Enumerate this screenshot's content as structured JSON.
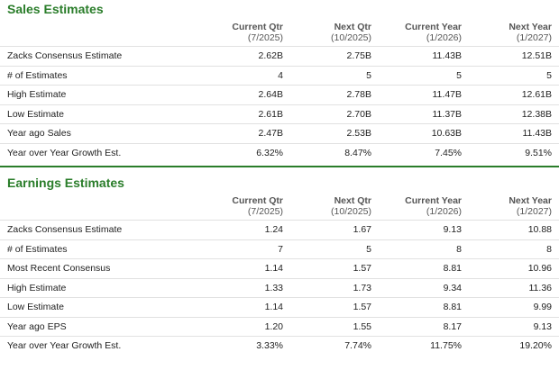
{
  "sales": {
    "title": "Sales Estimates",
    "columns": [
      {
        "period": "Current Qtr",
        "date": "(7/2025)"
      },
      {
        "period": "Next Qtr",
        "date": "(10/2025)"
      },
      {
        "period": "Current Year",
        "date": "(1/2026)"
      },
      {
        "period": "Next Year",
        "date": "(1/2027)"
      }
    ],
    "rows": [
      {
        "label": "Zacks Consensus Estimate",
        "values": [
          "2.62B",
          "2.75B",
          "11.43B",
          "12.51B"
        ]
      },
      {
        "label": "# of Estimates",
        "values": [
          "4",
          "5",
          "5",
          "5"
        ]
      },
      {
        "label": "High Estimate",
        "values": [
          "2.64B",
          "2.78B",
          "11.47B",
          "12.61B"
        ]
      },
      {
        "label": "Low Estimate",
        "values": [
          "2.61B",
          "2.70B",
          "11.37B",
          "12.38B"
        ]
      },
      {
        "label": "Year ago Sales",
        "values": [
          "2.47B",
          "2.53B",
          "10.63B",
          "11.43B"
        ]
      },
      {
        "label": "Year over Year Growth Est.",
        "values": [
          "6.32%",
          "8.47%",
          "7.45%",
          "9.51%"
        ]
      }
    ]
  },
  "earnings": {
    "title": "Earnings Estimates",
    "columns": [
      {
        "period": "Current Qtr",
        "date": "(7/2025)"
      },
      {
        "period": "Next Qtr",
        "date": "(10/2025)"
      },
      {
        "period": "Current Year",
        "date": "(1/2026)"
      },
      {
        "period": "Next Year",
        "date": "(1/2027)"
      }
    ],
    "rows": [
      {
        "label": "Zacks Consensus Estimate",
        "values": [
          "1.24",
          "1.67",
          "9.13",
          "10.88"
        ]
      },
      {
        "label": "# of Estimates",
        "values": [
          "7",
          "5",
          "8",
          "8"
        ]
      },
      {
        "label": "Most Recent Consensus",
        "values": [
          "1.14",
          "1.57",
          "8.81",
          "10.96"
        ]
      },
      {
        "label": "High Estimate",
        "values": [
          "1.33",
          "1.73",
          "9.34",
          "11.36"
        ]
      },
      {
        "label": "Low Estimate",
        "values": [
          "1.14",
          "1.57",
          "8.81",
          "9.99"
        ]
      },
      {
        "label": "Year ago EPS",
        "values": [
          "1.20",
          "1.55",
          "8.17",
          "9.13"
        ]
      },
      {
        "label": "Year over Year Growth Est.",
        "values": [
          "3.33%",
          "7.74%",
          "11.75%",
          "19.20%"
        ]
      }
    ]
  },
  "colors": {
    "accent": "#2a7d2a",
    "row_border": "#e1e1e1"
  }
}
